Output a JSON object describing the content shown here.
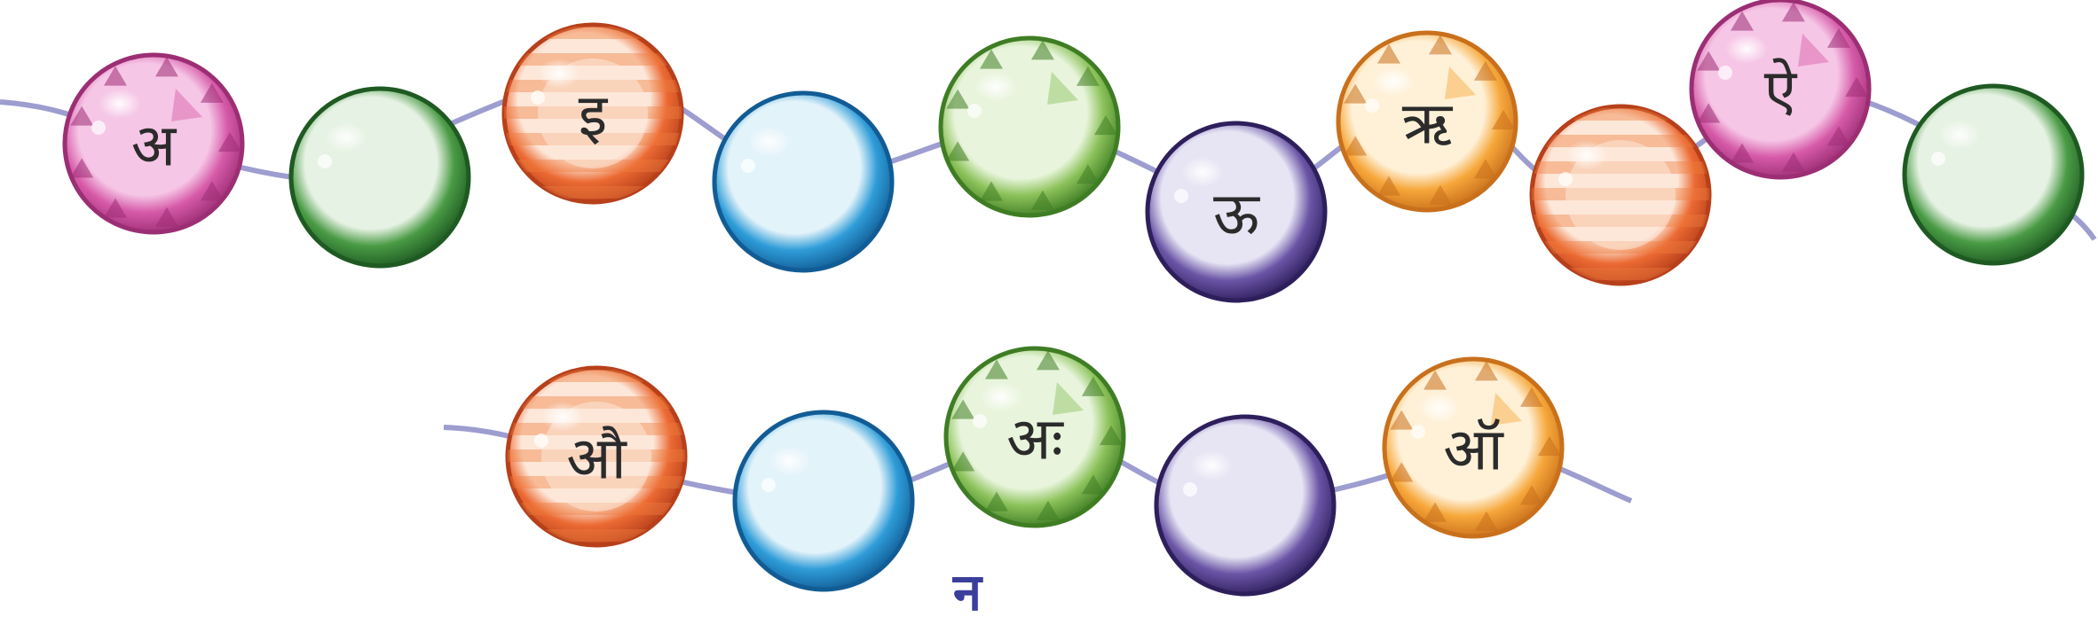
{
  "palette": {
    "string": "#9d9dd0",
    "pink": [
      "#f6c6e6",
      "#d65aa8",
      "#9c2e74"
    ],
    "green": [
      "#e8f5dc",
      "#8cc25a",
      "#3f7d24"
    ],
    "darkgreen": [
      "#e6f2e3",
      "#4a9b45",
      "#1e5a22"
    ],
    "blue": [
      "#e3f3fa",
      "#2e9cd8",
      "#125c95"
    ],
    "purple": [
      "#e7e5f4",
      "#6a55a6",
      "#2e1f5c"
    ],
    "orange": [
      "#fff1d8",
      "#f6a73a",
      "#c9701c"
    ],
    "redorange": [
      "#fde7d8",
      "#ec6a33",
      "#b7401b"
    ],
    "stripe": "#ee7c3e"
  },
  "row1": [
    {
      "label": "अ",
      "color": "pink",
      "pattern": "triangles"
    },
    {
      "label": "",
      "color": "darkgreen",
      "pattern": "plain"
    },
    {
      "label": "इ",
      "color": "redorange",
      "pattern": "stripes"
    },
    {
      "label": "",
      "color": "blue",
      "pattern": "plain"
    },
    {
      "label": "",
      "color": "green",
      "pattern": "triangles"
    },
    {
      "label": "ऊ",
      "color": "purple",
      "pattern": "plain"
    },
    {
      "label": "ऋ",
      "color": "orange",
      "pattern": "triangles"
    },
    {
      "label": "",
      "color": "redorange",
      "pattern": "stripes"
    },
    {
      "label": "ऐ",
      "color": "pink",
      "pattern": "triangles"
    },
    {
      "label": "",
      "color": "darkgreen",
      "pattern": "plain"
    }
  ],
  "row2": [
    {
      "label": "औ",
      "color": "redorange",
      "pattern": "stripes"
    },
    {
      "label": "",
      "color": "blue",
      "pattern": "plain"
    },
    {
      "label": "अः",
      "color": "green",
      "pattern": "triangles"
    },
    {
      "label": "",
      "color": "purple",
      "pattern": "plain"
    },
    {
      "label": "ऑ",
      "color": "orange",
      "pattern": "triangles"
    }
  ],
  "footer": {
    "label": "न"
  }
}
